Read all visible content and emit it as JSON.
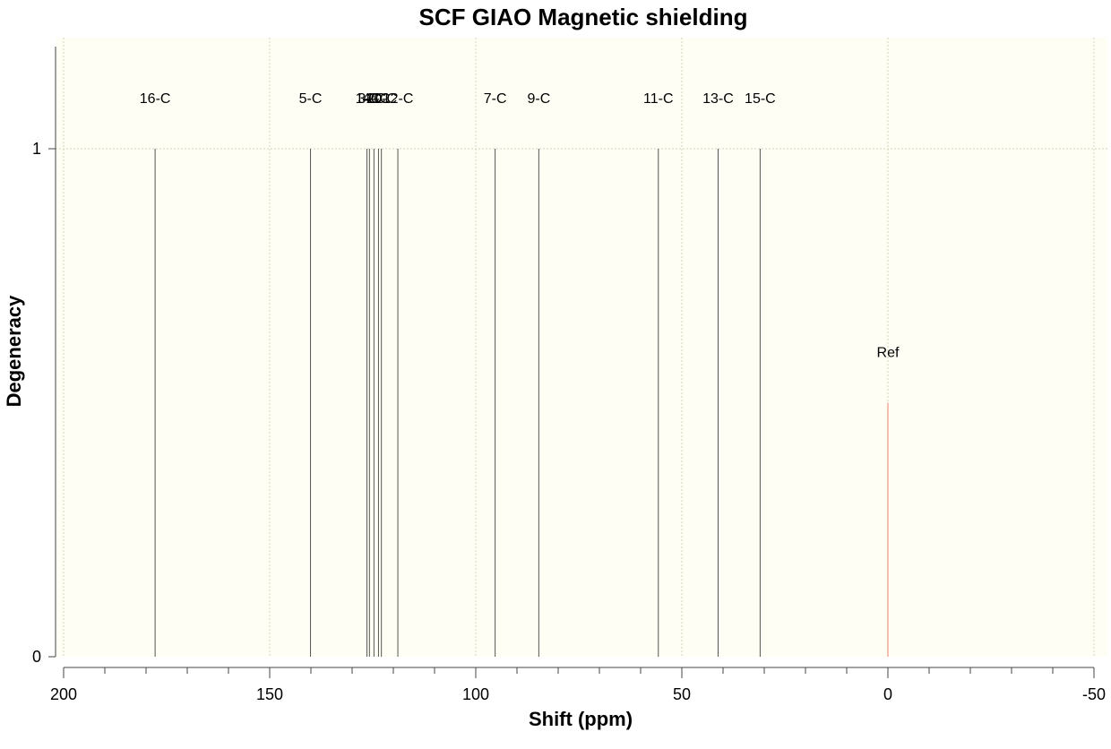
{
  "chart_data": {
    "type": "bar",
    "title": "SCF GIAO Magnetic shielding",
    "xlabel": "Shift (ppm)",
    "ylabel": "Degeneracy",
    "xlim": [
      200,
      -50
    ],
    "ylim": [
      0,
      1.2
    ],
    "x_reversed": true,
    "x_ticks": [
      200,
      150,
      100,
      50,
      0,
      -50
    ],
    "x_tick_labels": [
      "200",
      "150",
      "100",
      "50",
      "0",
      "-50"
    ],
    "y_ticks": [
      0,
      1
    ],
    "y_tick_labels": [
      "0",
      "1"
    ],
    "grid": true,
    "colors": {
      "plot_background": "#fefef4",
      "peak": "#555555",
      "reference": "#f08070",
      "grid": "#d4d4bc",
      "axis": "#444444"
    },
    "series": [
      {
        "peaks": [
          {
            "label": "16-C",
            "x": 177.8,
            "y": 1
          },
          {
            "label": "5-C",
            "x": 140.1,
            "y": 1
          },
          {
            "label": "1-C",
            "x": 126.4,
            "y": 1
          },
          {
            "label": "3-C",
            "x": 125.8,
            "y": 1
          },
          {
            "label": "4-C",
            "x": 124.7,
            "y": 1
          },
          {
            "label": "2-C",
            "x": 123.6,
            "y": 1
          },
          {
            "label": "10-C",
            "x": 122.9,
            "y": 1
          },
          {
            "label": "12-C",
            "x": 118.9,
            "y": 1
          },
          {
            "label": "7-C",
            "x": 95.3,
            "y": 1
          },
          {
            "label": "9-C",
            "x": 84.7,
            "y": 1
          },
          {
            "label": "11-C",
            "x": 55.7,
            "y": 1
          },
          {
            "label": "13-C",
            "x": 41.2,
            "y": 1
          },
          {
            "label": "15-C",
            "x": 31.0,
            "y": 1
          }
        ]
      },
      {
        "peaks": [
          {
            "label": "Ref",
            "x": 0,
            "y": 0.5
          }
        ]
      }
    ]
  }
}
